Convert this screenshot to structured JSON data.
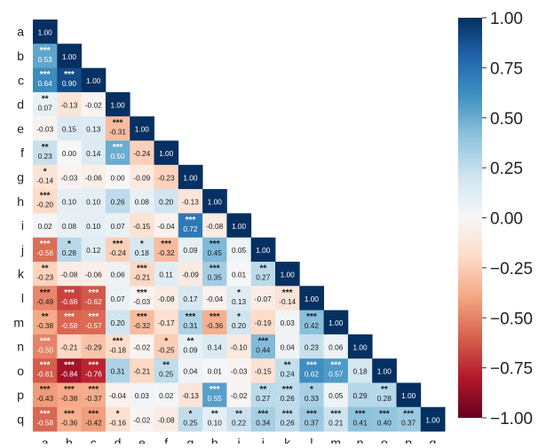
{
  "chart_data": {
    "type": "heatmap",
    "title": "",
    "xlabel": "",
    "ylabel": "",
    "layout": "lower-triangle",
    "labels": [
      "a",
      "b",
      "c",
      "d",
      "e",
      "f",
      "g",
      "h",
      "i",
      "j",
      "k",
      "l",
      "m",
      "n",
      "o",
      "p",
      "q"
    ],
    "values": [
      [
        1.0
      ],
      [
        0.53,
        1.0
      ],
      [
        0.64,
        0.9,
        1.0
      ],
      [
        0.07,
        -0.13,
        -0.02,
        1.0
      ],
      [
        -0.03,
        0.15,
        0.13,
        -0.31,
        1.0
      ],
      [
        0.23,
        0.0,
        0.14,
        0.5,
        -0.24,
        1.0
      ],
      [
        -0.14,
        -0.03,
        -0.06,
        -0.0,
        -0.09,
        -0.23,
        1.0
      ],
      [
        -0.2,
        0.1,
        0.1,
        0.26,
        0.08,
        0.2,
        -0.13,
        1.0
      ],
      [
        0.02,
        0.08,
        0.1,
        0.07,
        -0.15,
        -0.04,
        0.72,
        -0.08,
        1.0
      ],
      [
        -0.56,
        0.28,
        0.12,
        -0.24,
        0.18,
        -0.32,
        0.09,
        0.45,
        0.05,
        1.0
      ],
      [
        -0.23,
        -0.08,
        -0.06,
        0.06,
        -0.21,
        0.11,
        -0.09,
        0.35,
        0.01,
        0.27,
        1.0
      ],
      [
        -0.49,
        -0.68,
        -0.62,
        0.07,
        -0.03,
        -0.08,
        0.17,
        -0.04,
        0.13,
        -0.07,
        -0.14,
        1.0
      ],
      [
        -0.38,
        -0.58,
        -0.57,
        0.2,
        -0.32,
        -0.17,
        0.31,
        -0.36,
        0.2,
        -0.19,
        0.03,
        0.42,
        1.0
      ],
      [
        -0.5,
        -0.21,
        -0.29,
        -0.18,
        -0.02,
        -0.25,
        0.09,
        0.14,
        -0.1,
        0.44,
        0.04,
        0.23,
        0.06,
        1.0
      ],
      [
        -0.61,
        -0.84,
        -0.76,
        0.31,
        -0.21,
        0.25,
        0.04,
        0.01,
        -0.03,
        -0.15,
        0.24,
        0.62,
        0.57,
        0.18,
        1.0
      ],
      [
        -0.43,
        -0.38,
        -0.37,
        -0.04,
        0.03,
        0.02,
        -0.13,
        0.55,
        -0.02,
        0.27,
        0.26,
        0.33,
        0.05,
        0.29,
        0.28,
        1.0
      ],
      [
        -0.58,
        -0.36,
        -0.42,
        -0.16,
        -0.02,
        -0.08,
        0.25,
        0.1,
        0.22,
        0.34,
        0.26,
        0.37,
        0.21,
        0.41,
        0.4,
        0.37,
        1.0
      ]
    ],
    "significance": [
      [
        ""
      ],
      [
        "***",
        ""
      ],
      [
        "***",
        "***",
        ""
      ],
      [
        "**",
        "",
        "",
        ""
      ],
      [
        "",
        "",
        "",
        "***",
        ""
      ],
      [
        "**",
        "",
        "",
        "***",
        "",
        ""
      ],
      [
        "*",
        "",
        "",
        "",
        "",
        "",
        ""
      ],
      [
        "***",
        "",
        "",
        "",
        "",
        "",
        "",
        ""
      ],
      [
        "",
        "",
        "",
        "",
        "",
        "",
        "***",
        "",
        ""
      ],
      [
        "***",
        "*",
        "",
        "***",
        "*",
        "***",
        "",
        "***",
        "",
        ""
      ],
      [
        "**",
        "",
        "",
        "",
        "***",
        "",
        "",
        "***",
        "",
        "**",
        ""
      ],
      [
        "***",
        "***",
        "***",
        "",
        "***",
        "",
        "",
        "",
        "*",
        "",
        "***",
        ""
      ],
      [
        "**",
        "***",
        "***",
        "",
        "***",
        "",
        "***",
        "***",
        "*",
        "",
        "",
        "***",
        ""
      ],
      [
        "***",
        "",
        "",
        "***",
        "",
        "*",
        "**",
        "",
        "",
        "***",
        "",
        "",
        "",
        ""
      ],
      [
        "***",
        "***",
        "***",
        "",
        "",
        "**",
        "",
        "",
        "",
        "",
        "**",
        "***",
        "***",
        "",
        ""
      ],
      [
        "***",
        "***",
        "***",
        "",
        "",
        "",
        "",
        "***",
        "",
        "**",
        "***",
        "*",
        "",
        "",
        "**",
        ""
      ],
      [
        "***",
        "***",
        "***",
        "*",
        "",
        "",
        "*",
        "**",
        "**",
        "***",
        "***",
        "***",
        "***",
        "***",
        "***",
        "***",
        ""
      ]
    ],
    "colorbar": {
      "min": -1.0,
      "max": 1.0,
      "ticks": [
        "1.00",
        "0.75",
        "0.50",
        "0.25",
        "0.00",
        "−0.25",
        "−0.50",
        "−0.75",
        "−1.00"
      ],
      "tick_values": [
        1.0,
        0.75,
        0.5,
        0.25,
        0.0,
        -0.25,
        -0.5,
        -0.75,
        -1.0
      ],
      "colormap": "RdBu",
      "stops": [
        "#67001f",
        "#b2182b",
        "#d6604d",
        "#f4a582",
        "#fddbc7",
        "#f7f7f7",
        "#d1e5f0",
        "#92c5de",
        "#4393c3",
        "#2166ac",
        "#053061"
      ]
    }
  }
}
